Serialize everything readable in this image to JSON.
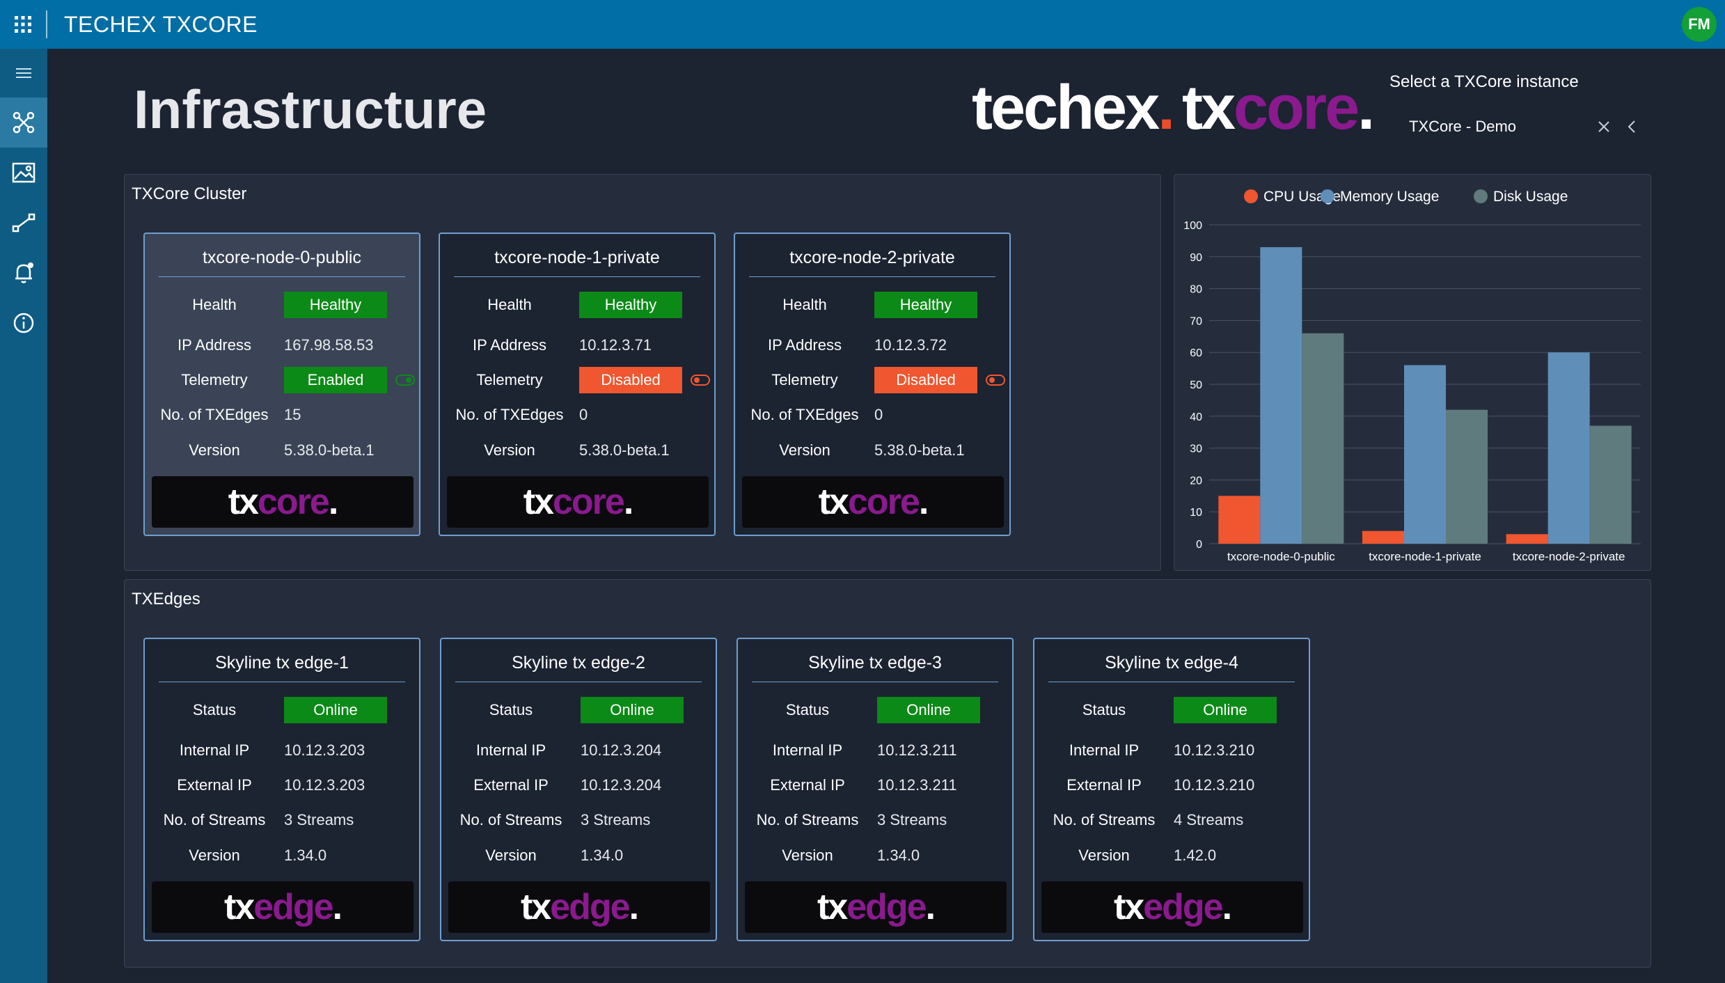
{
  "app": {
    "title": "TECHEX TXCORE",
    "avatar_initials": "FM"
  },
  "page": {
    "title": "Infrastructure"
  },
  "brand": {
    "techex_main": "techex",
    "techex_dot": ".",
    "tx": "tx",
    "core": "core",
    "core_dot": "."
  },
  "instance": {
    "label": "Select a TXCore instance",
    "value": "TXCore - Demo"
  },
  "sidebar": {
    "items": [
      {
        "icon": "menu-icon"
      },
      {
        "icon": "infrastructure-icon",
        "active": true
      },
      {
        "icon": "image-icon"
      },
      {
        "icon": "routes-icon"
      },
      {
        "icon": "alarm-icon"
      },
      {
        "icon": "info-icon"
      }
    ]
  },
  "cluster": {
    "title": "TXCore Cluster",
    "labels": {
      "health": "Health",
      "ip": "IP Address",
      "telemetry": "Telemetry",
      "edges": "No. of TXEdges",
      "version": "Version"
    },
    "nodes": [
      {
        "name": "txcore-node-0-public",
        "health": "Healthy",
        "ip": "167.98.58.53",
        "telemetry": "Enabled",
        "edges": "15",
        "version": "5.38.0-beta.1"
      },
      {
        "name": "txcore-node-1-private",
        "health": "Healthy",
        "ip": "10.12.3.71",
        "telemetry": "Disabled",
        "edges": "0",
        "version": "5.38.0-beta.1"
      },
      {
        "name": "txcore-node-2-private",
        "health": "Healthy",
        "ip": "10.12.3.72",
        "telemetry": "Disabled",
        "edges": "0",
        "version": "5.38.0-beta.1"
      }
    ]
  },
  "edges": {
    "title": "TXEdges",
    "labels": {
      "status": "Status",
      "internal": "Internal IP",
      "external": "External IP",
      "streams": "No. of Streams",
      "version": "Version"
    },
    "items": [
      {
        "name": "Skyline tx edge-1",
        "status": "Online",
        "internal": "10.12.3.203",
        "external": "10.12.3.203",
        "streams": "3 Streams",
        "version": "1.34.0"
      },
      {
        "name": "Skyline tx edge-2",
        "status": "Online",
        "internal": "10.12.3.204",
        "external": "10.12.3.204",
        "streams": "3 Streams",
        "version": "1.34.0"
      },
      {
        "name": "Skyline tx edge-3",
        "status": "Online",
        "internal": "10.12.3.211",
        "external": "10.12.3.211",
        "streams": "3 Streams",
        "version": "1.34.0"
      },
      {
        "name": "Skyline tx edge-4",
        "status": "Online",
        "internal": "10.12.3.210",
        "external": "10.12.3.210",
        "streams": "4 Streams",
        "version": "1.42.0"
      }
    ]
  },
  "logos": {
    "tx": "tx",
    "core": "core",
    "edge": "edge",
    "dot": "."
  },
  "colors": {
    "accent": "#016ea5",
    "healthy": "#0c8a17",
    "disabled": "#f0562f",
    "brand_purple": "#8a1a8e",
    "cpu": "#f0562f",
    "memory": "#5f8fb9",
    "disk": "#607b7d"
  },
  "chart_data": {
    "type": "bar",
    "categories": [
      "txcore-node-0-public",
      "txcore-node-1-private",
      "txcore-node-2-private"
    ],
    "series": [
      {
        "name": "CPU Usage",
        "values": [
          15,
          4,
          3
        ],
        "color": "#f0562f"
      },
      {
        "name": "Memory Usage",
        "values": [
          93,
          56,
          60
        ],
        "color": "#5f8fb9"
      },
      {
        "name": "Disk Usage",
        "values": [
          66,
          42,
          37
        ],
        "color": "#607b7d"
      }
    ],
    "ylim": [
      0,
      100
    ],
    "yticks": [
      0,
      10,
      20,
      30,
      40,
      50,
      60,
      70,
      80,
      90,
      100
    ],
    "legend": "top",
    "grid": true
  }
}
